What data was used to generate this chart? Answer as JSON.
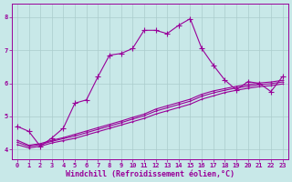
{
  "title": "",
  "xlabel": "Windchill (Refroidissement éolien,°C)",
  "ylabel": "",
  "xlim": [
    -0.5,
    23.5
  ],
  "ylim": [
    3.7,
    8.4
  ],
  "yticks": [
    4,
    5,
    6,
    7,
    8
  ],
  "xticks": [
    0,
    1,
    2,
    3,
    4,
    5,
    6,
    7,
    8,
    9,
    10,
    11,
    12,
    13,
    14,
    15,
    16,
    17,
    18,
    19,
    20,
    21,
    22,
    23
  ],
  "background_color": "#c8e8e8",
  "grid_color": "#aacccc",
  "line_color": "#990099",
  "line1_y": [
    4.7,
    4.55,
    4.1,
    4.35,
    4.65,
    5.4,
    5.5,
    6.2,
    6.85,
    6.9,
    7.05,
    7.6,
    7.6,
    7.5,
    7.75,
    7.95,
    7.05,
    6.55,
    6.1,
    5.8,
    6.05,
    6.0,
    5.75,
    6.2
  ],
  "line2_y": [
    4.15,
    4.05,
    4.1,
    4.2,
    4.27,
    4.34,
    4.44,
    4.54,
    4.64,
    4.74,
    4.84,
    4.94,
    5.07,
    5.17,
    5.27,
    5.37,
    5.52,
    5.62,
    5.72,
    5.79,
    5.85,
    5.9,
    5.93,
    5.98
  ],
  "line3_y": [
    4.22,
    4.1,
    4.15,
    4.25,
    4.33,
    4.41,
    4.51,
    4.61,
    4.71,
    4.81,
    4.92,
    5.02,
    5.16,
    5.26,
    5.36,
    5.46,
    5.61,
    5.71,
    5.79,
    5.86,
    5.91,
    5.96,
    5.99,
    6.04
  ],
  "line4_y": [
    4.28,
    4.13,
    4.18,
    4.28,
    4.36,
    4.46,
    4.56,
    4.66,
    4.76,
    4.86,
    4.97,
    5.07,
    5.22,
    5.32,
    5.42,
    5.52,
    5.67,
    5.77,
    5.84,
    5.91,
    5.96,
    6.01,
    6.04,
    6.09
  ],
  "marker_size": 3.5,
  "line_width": 0.8,
  "tick_fontsize": 5.0,
  "label_fontsize": 6.0
}
